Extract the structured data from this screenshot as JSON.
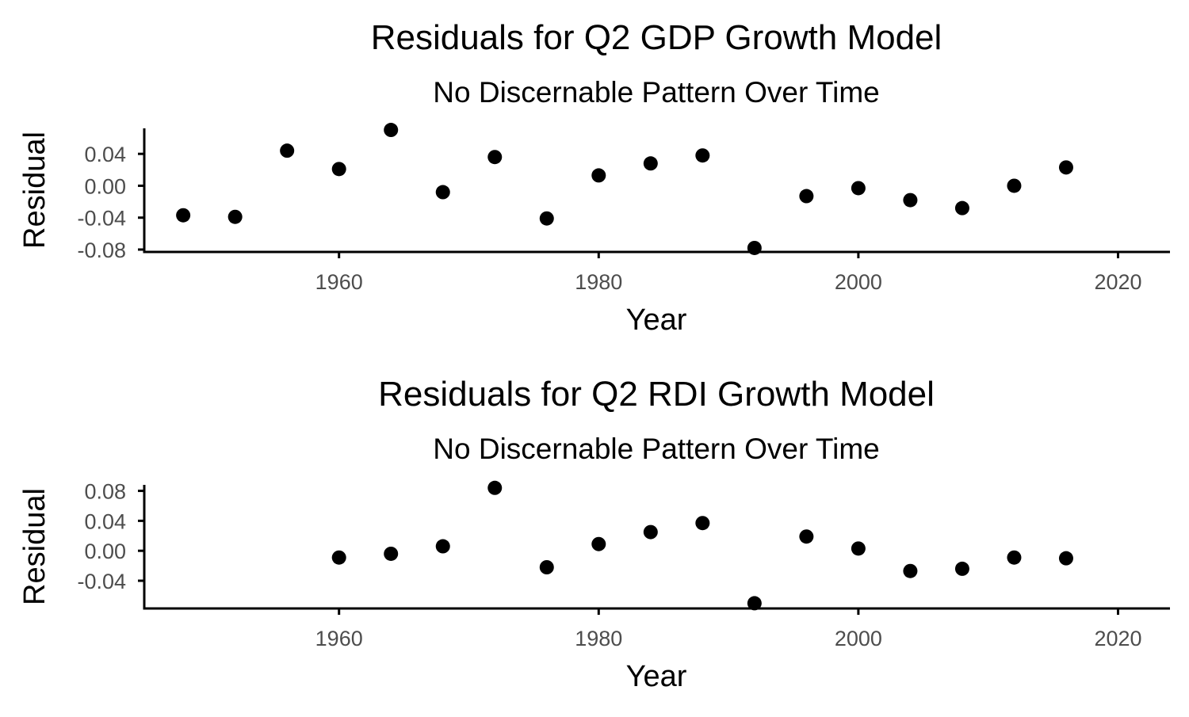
{
  "chart_data": [
    {
      "type": "scatter",
      "title": "Residuals for Q2 GDP Growth Model",
      "subtitle": "No Discernable Pattern Over Time",
      "xlabel": "Year",
      "ylabel": "Residual",
      "xlim": [
        1945,
        2024
      ],
      "ylim": [
        -0.083,
        0.072
      ],
      "x_ticks": [
        1960,
        1980,
        2000,
        2020
      ],
      "x_tick_labels": [
        "1960",
        "1980",
        "2000",
        "2020"
      ],
      "y_ticks": [
        -0.08,
        -0.04,
        0.0,
        0.04
      ],
      "y_tick_labels": [
        "-0.08",
        "-0.04",
        "0.00",
        "0.04"
      ],
      "grid": false,
      "legend": "none",
      "point_color": "#000000",
      "points": [
        {
          "x": 1948,
          "y": -0.037
        },
        {
          "x": 1952,
          "y": -0.039
        },
        {
          "x": 1956,
          "y": 0.044
        },
        {
          "x": 1960,
          "y": 0.021
        },
        {
          "x": 1964,
          "y": 0.07
        },
        {
          "x": 1968,
          "y": -0.008
        },
        {
          "x": 1972,
          "y": 0.036
        },
        {
          "x": 1976,
          "y": -0.041
        },
        {
          "x": 1980,
          "y": 0.013
        },
        {
          "x": 1984,
          "y": 0.028
        },
        {
          "x": 1988,
          "y": 0.038
        },
        {
          "x": 1992,
          "y": -0.078
        },
        {
          "x": 1996,
          "y": -0.013
        },
        {
          "x": 2000,
          "y": -0.003
        },
        {
          "x": 2004,
          "y": -0.018
        },
        {
          "x": 2008,
          "y": -0.028
        },
        {
          "x": 2012,
          "y": 0.0
        },
        {
          "x": 2016,
          "y": 0.023
        }
      ]
    },
    {
      "type": "scatter",
      "title": "Residuals for Q2 RDI Growth Model",
      "subtitle": "No Discernable Pattern Over Time",
      "xlabel": "Year",
      "ylabel": "Residual",
      "xlim": [
        1945,
        2024
      ],
      "ylim": [
        -0.077,
        0.088
      ],
      "x_ticks": [
        1960,
        1980,
        2000,
        2020
      ],
      "x_tick_labels": [
        "1960",
        "1980",
        "2000",
        "2020"
      ],
      "y_ticks": [
        -0.04,
        0.0,
        0.04,
        0.08
      ],
      "y_tick_labels": [
        "-0.04",
        "0.00",
        "0.04",
        "0.08"
      ],
      "grid": false,
      "legend": "none",
      "point_color": "#000000",
      "points": [
        {
          "x": 1960,
          "y": -0.009
        },
        {
          "x": 1964,
          "y": -0.004
        },
        {
          "x": 1968,
          "y": 0.006
        },
        {
          "x": 1972,
          "y": 0.084
        },
        {
          "x": 1976,
          "y": -0.022
        },
        {
          "x": 1980,
          "y": 0.009
        },
        {
          "x": 1984,
          "y": 0.025
        },
        {
          "x": 1988,
          "y": 0.037
        },
        {
          "x": 1992,
          "y": -0.07
        },
        {
          "x": 1996,
          "y": 0.019
        },
        {
          "x": 2000,
          "y": 0.003
        },
        {
          "x": 2004,
          "y": -0.027
        },
        {
          "x": 2008,
          "y": -0.024
        },
        {
          "x": 2012,
          "y": -0.009
        },
        {
          "x": 2016,
          "y": -0.01
        }
      ]
    }
  ]
}
